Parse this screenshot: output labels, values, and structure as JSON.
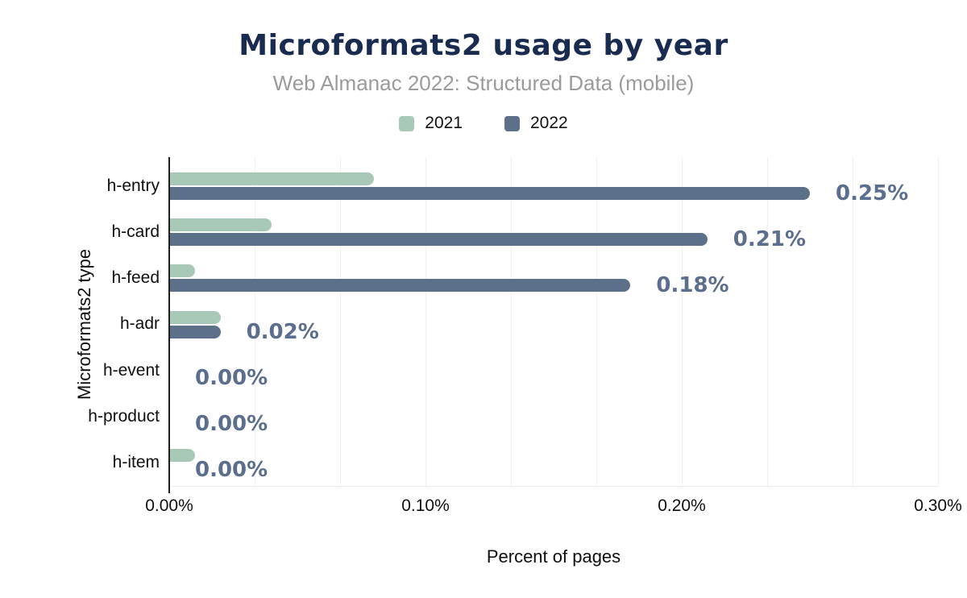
{
  "title": "Microformats2 usage by year",
  "subtitle": "Web Almanac 2022: Structured Data (mobile)",
  "colors": {
    "series_2021": "#a9c9b8",
    "series_2022": "#5d7089",
    "title_text": "#192b4e",
    "subtitle_text": "#9b9b9b",
    "value_label_text": "#5b6e8e",
    "gridline": "#f1f1f1",
    "axis_line": "#1f1f1f"
  },
  "chart_data": {
    "type": "bar",
    "orientation": "horizontal",
    "title": "Microformats2 usage by year",
    "subtitle": "Web Almanac 2022: Structured Data (mobile)",
    "categories": [
      "h-entry",
      "h-card",
      "h-feed",
      "h-adr",
      "h-event",
      "h-product",
      "h-item"
    ],
    "series": [
      {
        "name": "2021",
        "color": "#a9c9b8",
        "values": [
          0.08,
          0.04,
          0.01,
          0.02,
          0.0,
          0.0,
          0.01
        ]
      },
      {
        "name": "2022",
        "color": "#5d7089",
        "values": [
          0.25,
          0.21,
          0.18,
          0.02,
          0.0,
          0.0,
          0.0
        ],
        "value_labels": [
          "0.25%",
          "0.21%",
          "0.18%",
          "0.02%",
          "0.00%",
          "0.00%",
          "0.00%"
        ]
      }
    ],
    "xlabel": "Percent of pages",
    "ylabel": "Microformats2 type",
    "x_ticks": [
      "0.00%",
      "0.10%",
      "0.20%",
      "0.30%"
    ],
    "x_tick_values": [
      0.0,
      0.1,
      0.2,
      0.3
    ],
    "xlim": [
      0.0,
      0.3
    ],
    "grid": "vertical, minor every 0.0333%",
    "legend_position": "top",
    "value_labels_shown_for": "2022"
  }
}
